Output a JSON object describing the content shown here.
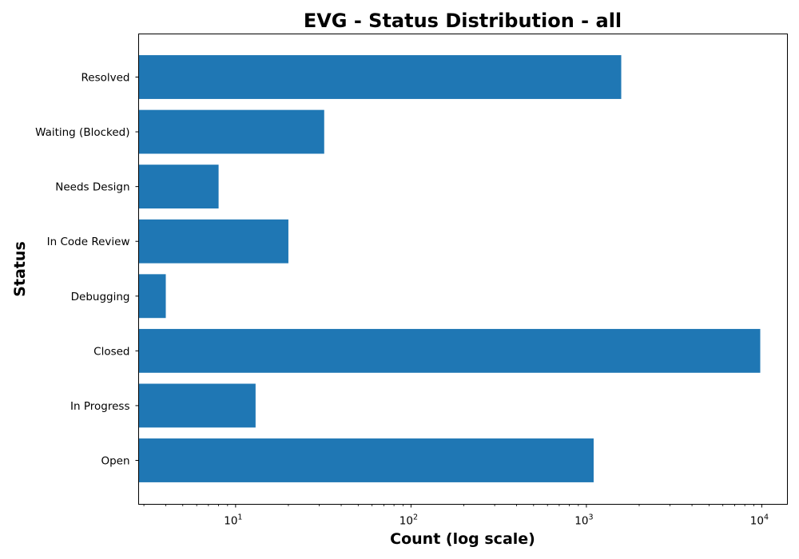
{
  "chart_data": {
    "type": "bar",
    "orientation": "horizontal",
    "title": "EVG - Status Distribution - all",
    "xlabel": "Count (log scale)",
    "ylabel": "Status",
    "x_scale": "log",
    "xlim": [
      2.8,
      14000
    ],
    "x_ticks": [
      {
        "base": "10",
        "exp": "1"
      },
      {
        "base": "10",
        "exp": "2"
      },
      {
        "base": "10",
        "exp": "3"
      },
      {
        "base": "10",
        "exp": "4"
      }
    ],
    "categories": [
      "Open",
      "In Progress",
      "Closed",
      "Debugging",
      "In Code Review",
      "Needs Design",
      "Waiting (Blocked)",
      "Resolved"
    ],
    "values": [
      1100,
      13,
      9800,
      4,
      20,
      8,
      32,
      1580
    ],
    "bar_color": "#1f77b4",
    "grid": false,
    "legend": "none"
  }
}
